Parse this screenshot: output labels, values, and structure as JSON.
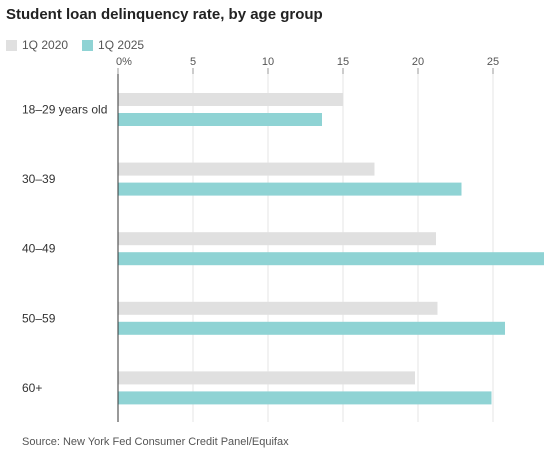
{
  "header": {
    "title": "Student loan delinquency rate, by age group"
  },
  "legend": [
    {
      "label": "1Q 2020",
      "color": "#e0e0e0"
    },
    {
      "label": "1Q 2025",
      "color": "#8fd3d4"
    }
  ],
  "footer": {
    "source": "Source: New York Fed Consumer Credit Panel/Equifax"
  },
  "chart_data": {
    "type": "bar",
    "orientation": "horizontal",
    "title": "Student loan delinquency rate, by age group",
    "categories": [
      "18–29 years old",
      "30–39",
      "40–49",
      "50–59",
      "60+"
    ],
    "series": [
      {
        "name": "1Q 2020",
        "values": [
          15.0,
          17.1,
          21.2,
          21.3,
          19.8
        ],
        "color": "#e0e0e0"
      },
      {
        "name": "1Q 2025",
        "values": [
          13.6,
          22.9,
          28.4,
          25.8,
          24.9
        ],
        "color": "#8fd3d4"
      }
    ],
    "xticks": [
      "0%",
      "5",
      "10",
      "15",
      "20",
      "25"
    ],
    "xlim": [
      0,
      28.4
    ],
    "grid": true,
    "legend_position": "top-left"
  }
}
